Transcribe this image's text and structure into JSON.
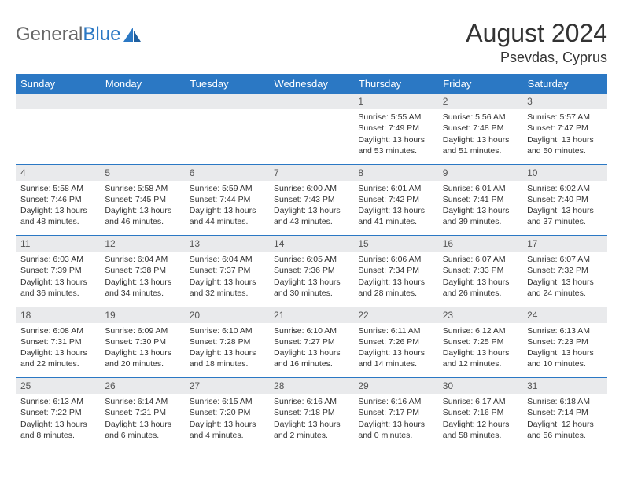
{
  "brand": {
    "part1": "General",
    "part2": "Blue"
  },
  "title": "August 2024",
  "location": "Psevdas, Cyprus",
  "colors": {
    "header_bg": "#2b78c4",
    "header_text": "#ffffff",
    "daynum_bg": "#e9eaec",
    "text": "#333333",
    "rule": "#2b78c4"
  },
  "weekdays": [
    "Sunday",
    "Monday",
    "Tuesday",
    "Wednesday",
    "Thursday",
    "Friday",
    "Saturday"
  ],
  "weeks": [
    [
      {
        "d": "",
        "sr": "",
        "ss": "",
        "dl": ""
      },
      {
        "d": "",
        "sr": "",
        "ss": "",
        "dl": ""
      },
      {
        "d": "",
        "sr": "",
        "ss": "",
        "dl": ""
      },
      {
        "d": "",
        "sr": "",
        "ss": "",
        "dl": ""
      },
      {
        "d": "1",
        "sr": "Sunrise: 5:55 AM",
        "ss": "Sunset: 7:49 PM",
        "dl": "Daylight: 13 hours and 53 minutes."
      },
      {
        "d": "2",
        "sr": "Sunrise: 5:56 AM",
        "ss": "Sunset: 7:48 PM",
        "dl": "Daylight: 13 hours and 51 minutes."
      },
      {
        "d": "3",
        "sr": "Sunrise: 5:57 AM",
        "ss": "Sunset: 7:47 PM",
        "dl": "Daylight: 13 hours and 50 minutes."
      }
    ],
    [
      {
        "d": "4",
        "sr": "Sunrise: 5:58 AM",
        "ss": "Sunset: 7:46 PM",
        "dl": "Daylight: 13 hours and 48 minutes."
      },
      {
        "d": "5",
        "sr": "Sunrise: 5:58 AM",
        "ss": "Sunset: 7:45 PM",
        "dl": "Daylight: 13 hours and 46 minutes."
      },
      {
        "d": "6",
        "sr": "Sunrise: 5:59 AM",
        "ss": "Sunset: 7:44 PM",
        "dl": "Daylight: 13 hours and 44 minutes."
      },
      {
        "d": "7",
        "sr": "Sunrise: 6:00 AM",
        "ss": "Sunset: 7:43 PM",
        "dl": "Daylight: 13 hours and 43 minutes."
      },
      {
        "d": "8",
        "sr": "Sunrise: 6:01 AM",
        "ss": "Sunset: 7:42 PM",
        "dl": "Daylight: 13 hours and 41 minutes."
      },
      {
        "d": "9",
        "sr": "Sunrise: 6:01 AM",
        "ss": "Sunset: 7:41 PM",
        "dl": "Daylight: 13 hours and 39 minutes."
      },
      {
        "d": "10",
        "sr": "Sunrise: 6:02 AM",
        "ss": "Sunset: 7:40 PM",
        "dl": "Daylight: 13 hours and 37 minutes."
      }
    ],
    [
      {
        "d": "11",
        "sr": "Sunrise: 6:03 AM",
        "ss": "Sunset: 7:39 PM",
        "dl": "Daylight: 13 hours and 36 minutes."
      },
      {
        "d": "12",
        "sr": "Sunrise: 6:04 AM",
        "ss": "Sunset: 7:38 PM",
        "dl": "Daylight: 13 hours and 34 minutes."
      },
      {
        "d": "13",
        "sr": "Sunrise: 6:04 AM",
        "ss": "Sunset: 7:37 PM",
        "dl": "Daylight: 13 hours and 32 minutes."
      },
      {
        "d": "14",
        "sr": "Sunrise: 6:05 AM",
        "ss": "Sunset: 7:36 PM",
        "dl": "Daylight: 13 hours and 30 minutes."
      },
      {
        "d": "15",
        "sr": "Sunrise: 6:06 AM",
        "ss": "Sunset: 7:34 PM",
        "dl": "Daylight: 13 hours and 28 minutes."
      },
      {
        "d": "16",
        "sr": "Sunrise: 6:07 AM",
        "ss": "Sunset: 7:33 PM",
        "dl": "Daylight: 13 hours and 26 minutes."
      },
      {
        "d": "17",
        "sr": "Sunrise: 6:07 AM",
        "ss": "Sunset: 7:32 PM",
        "dl": "Daylight: 13 hours and 24 minutes."
      }
    ],
    [
      {
        "d": "18",
        "sr": "Sunrise: 6:08 AM",
        "ss": "Sunset: 7:31 PM",
        "dl": "Daylight: 13 hours and 22 minutes."
      },
      {
        "d": "19",
        "sr": "Sunrise: 6:09 AM",
        "ss": "Sunset: 7:30 PM",
        "dl": "Daylight: 13 hours and 20 minutes."
      },
      {
        "d": "20",
        "sr": "Sunrise: 6:10 AM",
        "ss": "Sunset: 7:28 PM",
        "dl": "Daylight: 13 hours and 18 minutes."
      },
      {
        "d": "21",
        "sr": "Sunrise: 6:10 AM",
        "ss": "Sunset: 7:27 PM",
        "dl": "Daylight: 13 hours and 16 minutes."
      },
      {
        "d": "22",
        "sr": "Sunrise: 6:11 AM",
        "ss": "Sunset: 7:26 PM",
        "dl": "Daylight: 13 hours and 14 minutes."
      },
      {
        "d": "23",
        "sr": "Sunrise: 6:12 AM",
        "ss": "Sunset: 7:25 PM",
        "dl": "Daylight: 13 hours and 12 minutes."
      },
      {
        "d": "24",
        "sr": "Sunrise: 6:13 AM",
        "ss": "Sunset: 7:23 PM",
        "dl": "Daylight: 13 hours and 10 minutes."
      }
    ],
    [
      {
        "d": "25",
        "sr": "Sunrise: 6:13 AM",
        "ss": "Sunset: 7:22 PM",
        "dl": "Daylight: 13 hours and 8 minutes."
      },
      {
        "d": "26",
        "sr": "Sunrise: 6:14 AM",
        "ss": "Sunset: 7:21 PM",
        "dl": "Daylight: 13 hours and 6 minutes."
      },
      {
        "d": "27",
        "sr": "Sunrise: 6:15 AM",
        "ss": "Sunset: 7:20 PM",
        "dl": "Daylight: 13 hours and 4 minutes."
      },
      {
        "d": "28",
        "sr": "Sunrise: 6:16 AM",
        "ss": "Sunset: 7:18 PM",
        "dl": "Daylight: 13 hours and 2 minutes."
      },
      {
        "d": "29",
        "sr": "Sunrise: 6:16 AM",
        "ss": "Sunset: 7:17 PM",
        "dl": "Daylight: 13 hours and 0 minutes."
      },
      {
        "d": "30",
        "sr": "Sunrise: 6:17 AM",
        "ss": "Sunset: 7:16 PM",
        "dl": "Daylight: 12 hours and 58 minutes."
      },
      {
        "d": "31",
        "sr": "Sunrise: 6:18 AM",
        "ss": "Sunset: 7:14 PM",
        "dl": "Daylight: 12 hours and 56 minutes."
      }
    ]
  ]
}
